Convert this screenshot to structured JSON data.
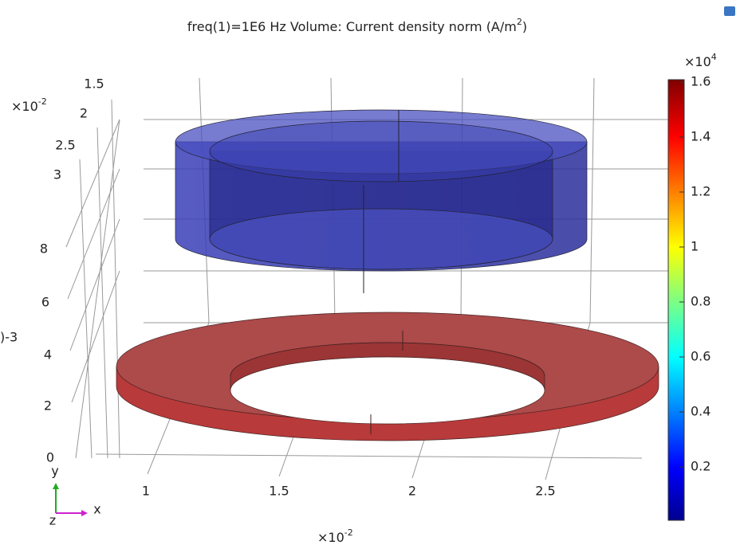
{
  "title": {
    "text": "freq(1)=1E6 Hz   Volume: Current density norm (A/m",
    "sup": "2",
    "end": ")"
  },
  "x_axis": {
    "ticks": [
      "1",
      "1.5",
      "2",
      "2.5"
    ],
    "multiplier": "×10",
    "exponent": "-2"
  },
  "y_axis": {
    "ticks": [
      "1.5",
      "2",
      "2.5",
      "3"
    ],
    "multiplier": "×10",
    "exponent": "-2"
  },
  "z_axis": {
    "ticks": [
      "0",
      "2",
      "4",
      "6",
      "8"
    ],
    "exponent": ")-3"
  },
  "colorbar": {
    "multiplier": "×10",
    "exponent": "4",
    "ticks": [
      "1.6",
      "1.4",
      "1.2",
      "1",
      "0.8",
      "0.6",
      "0.4",
      "0.2"
    ]
  },
  "triad": {
    "y": "y",
    "x": "x",
    "z": "z"
  }
}
